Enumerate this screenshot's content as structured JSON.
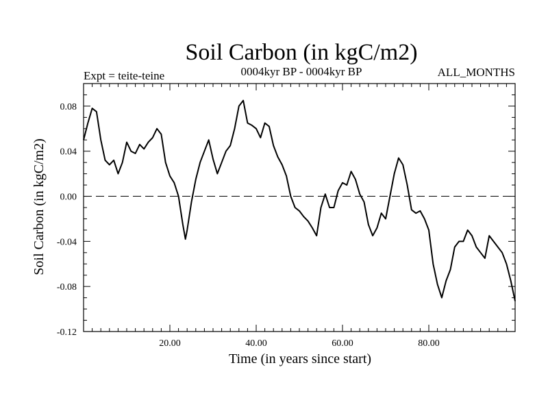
{
  "chart_data": {
    "type": "line",
    "title": "Soil Carbon (in kgC/m2)",
    "subtitle_left": "Expt = teite-teine",
    "subtitle_center": "0004kyr BP - 0004kyr BP",
    "subtitle_right": "ALL_MONTHS",
    "xlabel": "Time (in years since start)",
    "ylabel": "Soil Carbon (in kgC/m2)",
    "xlim": [
      0,
      100
    ],
    "ylim": [
      -0.12,
      0.1
    ],
    "xticks": [
      20,
      40,
      60,
      80
    ],
    "xtick_labels": [
      "20.00",
      "40.00",
      "60.00",
      "80.00"
    ],
    "yticks": [
      -0.12,
      -0.08,
      -0.04,
      0.0,
      0.04,
      0.08
    ],
    "ytick_labels": [
      "-0.12",
      "-0.08",
      "-0.04",
      "0.00",
      "0.04",
      "0.08"
    ],
    "reference_line": {
      "y": 0.0,
      "style": "dashed"
    },
    "grid": false,
    "series": [
      {
        "color": "#000000",
        "x": [
          0,
          1,
          2,
          3,
          4,
          5,
          6,
          7,
          8,
          9,
          10,
          11,
          12,
          13,
          14,
          15,
          16,
          17,
          18,
          19,
          20,
          21,
          22,
          23,
          23.6,
          24,
          25,
          26,
          27,
          28,
          29,
          30,
          31,
          32,
          33,
          34,
          35,
          36,
          37,
          38,
          39,
          40,
          41,
          42,
          43,
          44,
          45,
          46,
          47,
          48,
          49,
          50,
          51,
          52,
          53,
          54,
          55,
          56,
          57,
          58,
          59,
          60,
          61,
          62,
          63,
          64,
          65,
          66,
          67,
          68,
          69,
          70,
          71,
          72,
          73,
          74,
          75,
          76,
          77,
          78,
          79,
          80,
          81,
          82,
          83,
          84,
          85,
          86,
          87,
          88,
          89,
          90,
          91,
          92,
          93,
          94,
          95,
          96,
          97,
          98,
          99,
          100
        ],
        "values": [
          0.05,
          0.065,
          0.078,
          0.075,
          0.05,
          0.032,
          0.028,
          0.032,
          0.02,
          0.03,
          0.048,
          0.04,
          0.038,
          0.046,
          0.042,
          0.048,
          0.052,
          0.06,
          0.055,
          0.03,
          0.018,
          0.012,
          0.0,
          -0.025,
          -0.038,
          -0.03,
          -0.005,
          0.015,
          0.03,
          0.04,
          0.05,
          0.033,
          0.02,
          0.03,
          0.04,
          0.045,
          0.06,
          0.08,
          0.085,
          0.065,
          0.063,
          0.06,
          0.052,
          0.065,
          0.062,
          0.045,
          0.035,
          0.028,
          0.018,
          0.0,
          -0.01,
          -0.013,
          -0.018,
          -0.022,
          -0.028,
          -0.035,
          -0.01,
          0.002,
          -0.01,
          -0.01,
          0.005,
          0.012,
          0.01,
          0.022,
          0.015,
          0.002,
          -0.005,
          -0.025,
          -0.035,
          -0.028,
          -0.015,
          -0.02,
          0.0,
          0.02,
          0.034,
          0.028,
          0.01,
          -0.012,
          -0.015,
          -0.013,
          -0.02,
          -0.03,
          -0.06,
          -0.078,
          -0.09,
          -0.075,
          -0.065,
          -0.045,
          -0.04,
          -0.04,
          -0.03,
          -0.035,
          -0.045,
          -0.05,
          -0.055,
          -0.035,
          -0.04,
          -0.045,
          -0.05,
          -0.06,
          -0.075,
          -0.093
        ]
      }
    ]
  }
}
